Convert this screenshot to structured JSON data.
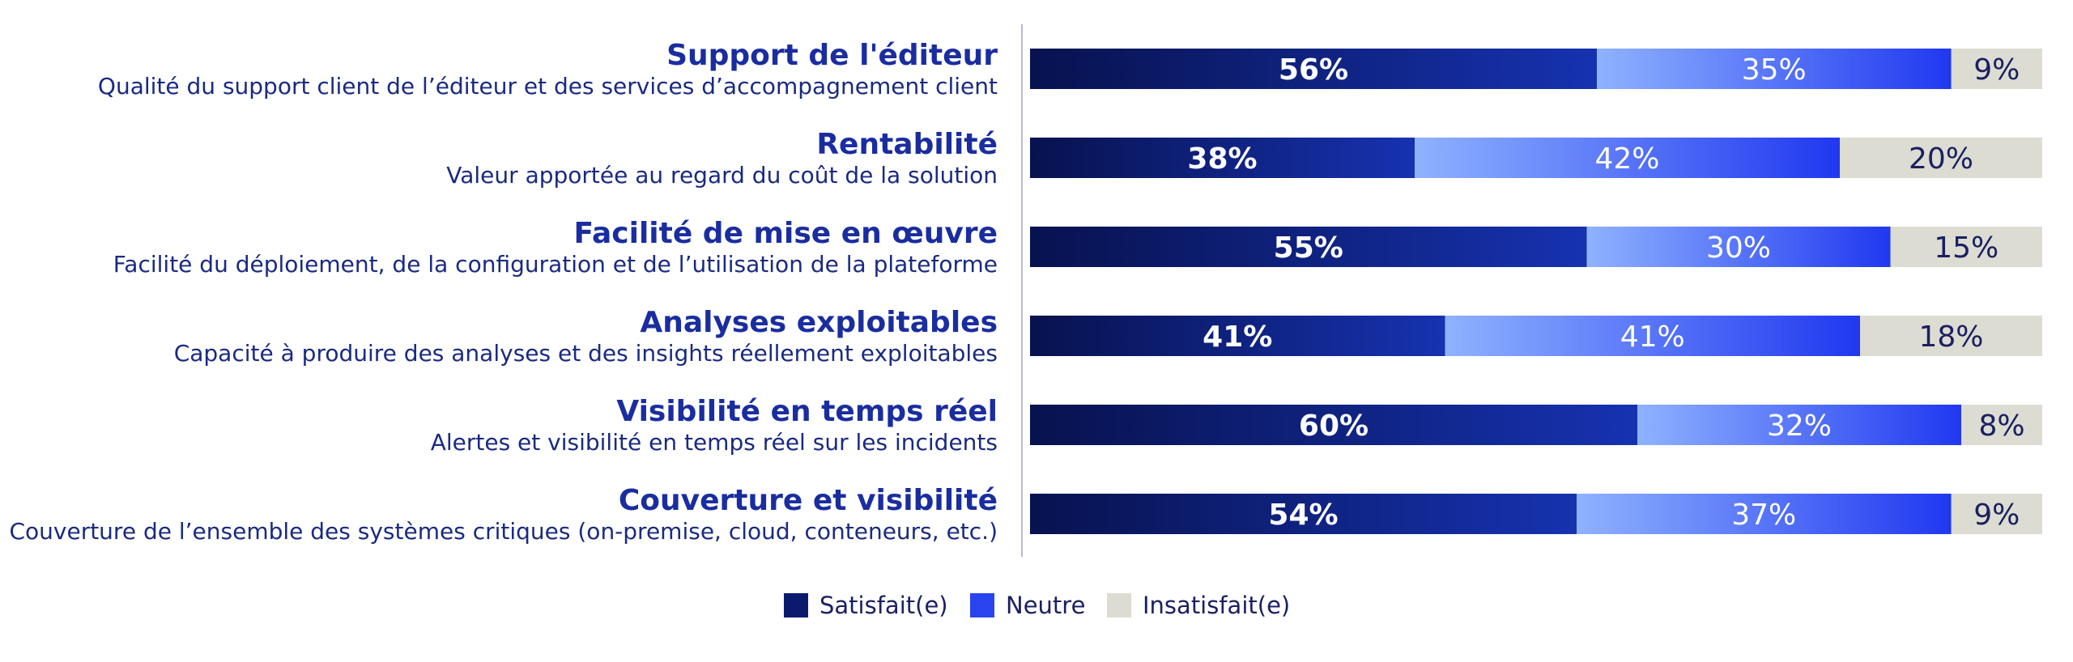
{
  "chart_data": {
    "type": "bar",
    "orientation": "horizontal",
    "stacked": true,
    "percent": true,
    "xlim": [
      0,
      100
    ],
    "grid": false,
    "legend_position": "bottom-center",
    "categories": [
      {
        "title": "Support de l'éditeur",
        "subtitle": "Qualité du support client de l’éditeur et des services d’accompagnement client"
      },
      {
        "title": "Rentabilité",
        "subtitle": "Valeur apportée au regard du coût de la solution"
      },
      {
        "title": "Facilité de mise en œuvre",
        "subtitle": "Facilité du déploiement, de la configuration et de l’utilisation de la plateforme"
      },
      {
        "title": "Analyses exploitables",
        "subtitle": "Capacité à produire des analyses et des insights réellement exploitables"
      },
      {
        "title": "Visibilité en temps réel",
        "subtitle": "Alertes et visibilité en temps réel sur les incidents"
      },
      {
        "title": "Couverture et visibilité",
        "subtitle": "Couverture de l’ensemble des systèmes critiques (on-premise, cloud, conteneurs, etc.)"
      }
    ],
    "series": [
      {
        "name": "Satisfait(e)",
        "color": "#0c1a6e",
        "label_color": "#ffffff",
        "values": [
          56,
          38,
          55,
          41,
          60,
          54
        ]
      },
      {
        "name": "Neutre",
        "color": "#2a44f0",
        "label_color": "#ffffff",
        "values": [
          35,
          42,
          30,
          41,
          32,
          37
        ]
      },
      {
        "name": "Insatisfait(e)",
        "color": "#dcdcd2",
        "label_color": "#1a2060",
        "values": [
          9,
          20,
          15,
          18,
          8,
          9
        ]
      }
    ],
    "value_suffix": "%"
  }
}
